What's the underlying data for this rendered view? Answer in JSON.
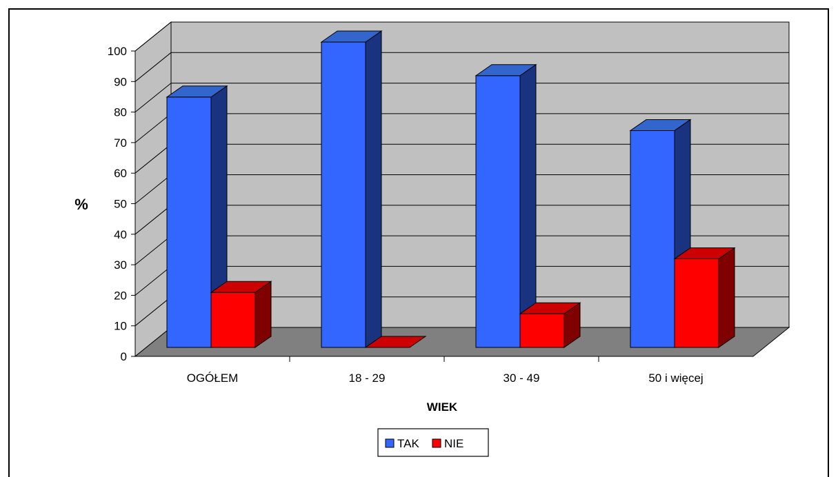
{
  "chart_data": {
    "type": "bar",
    "ylabel": "%",
    "xlabel": "WIEK",
    "ylim": [
      0,
      100
    ],
    "yticks": [
      0,
      10,
      20,
      30,
      40,
      50,
      60,
      70,
      80,
      90,
      100
    ],
    "categories": [
      "OGÓŁEM",
      "18 - 29",
      "30 - 49",
      "50 i więcej"
    ],
    "series": [
      {
        "name": "TAK",
        "values": [
          82,
          100,
          89,
          71
        ],
        "color": "#3366ff"
      },
      {
        "name": "NIE",
        "values": [
          18,
          0,
          11,
          29
        ],
        "color": "#ff0000"
      }
    ],
    "grid": true,
    "legend": "bottom",
    "wall_color": "#c0c0c0",
    "floor_color": "#808080"
  }
}
